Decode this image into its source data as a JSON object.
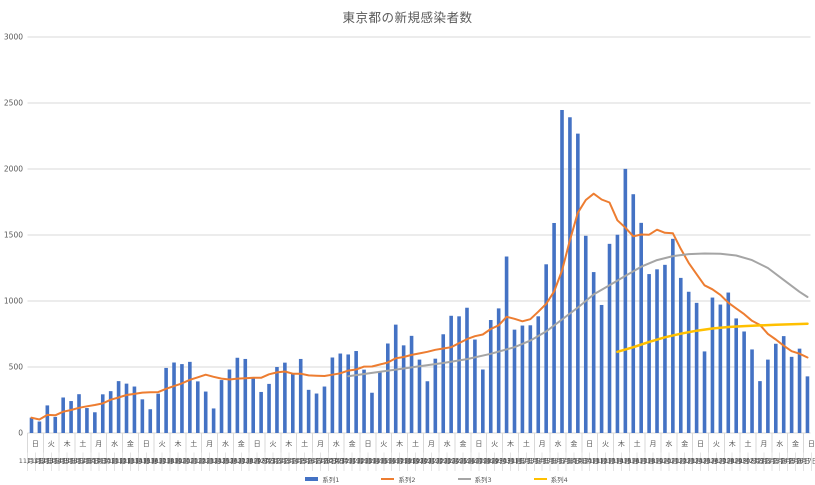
{
  "title": "東京都の新規感染者数",
  "chart_data": {
    "type": "bar",
    "title": "東京都の新規感染者数",
    "xlabel": "",
    "ylabel": "",
    "ylim": [
      0,
      3000
    ],
    "y_ticks": [
      "0",
      "500",
      "1000",
      "1500",
      "2000",
      "2500",
      "3000"
    ],
    "grid": true,
    "legend_position": "bottom",
    "x_dates": [
      "11月1日",
      "11月2日",
      "11月3日",
      "11月4日",
      "11月5日",
      "11月6日",
      "11月7日",
      "11月8日",
      "11月9日",
      "11月10日",
      "11月11日",
      "11月12日",
      "11月13日",
      "11月14日",
      "11月15日",
      "11月16日",
      "11月17日",
      "11月18日",
      "11月19日",
      "11月20日",
      "11月21日",
      "11月22日",
      "11月23日",
      "11月24日",
      "11月25日",
      "11月26日",
      "11月27日",
      "11月28日",
      "11月29日",
      "11月30日",
      "12月1日",
      "12月2日",
      "12月3日",
      "12月4日",
      "12月5日",
      "12月6日",
      "12月7日",
      "12月8日",
      "12月9日",
      "12月10日",
      "12月11日",
      "12月12日",
      "12月13日",
      "12月14日",
      "12月15日",
      "12月16日",
      "12月17日",
      "12月18日",
      "12月19日",
      "12月20日",
      "12月21日",
      "12月22日",
      "12月23日",
      "12月24日",
      "12月25日",
      "12月26日",
      "12月27日",
      "12月28日",
      "12月29日",
      "12月30日",
      "12月31日",
      "1月1日",
      "1月2日",
      "1月3日",
      "1月4日",
      "1月5日",
      "1月6日",
      "1月7日",
      "1月8日",
      "1月9日",
      "1月10日",
      "1月11日",
      "1月12日",
      "1月13日",
      "1月14日",
      "1月15日",
      "1月16日",
      "1月17日",
      "1月18日",
      "1月19日",
      "1月20日",
      "1月21日",
      "1月22日",
      "1月23日",
      "1月24日",
      "1月25日",
      "1月26日",
      "1月27日",
      "1月28日",
      "1月29日",
      "1月30日",
      "1月31日",
      "2月1日",
      "2月2日",
      "2月3日",
      "2月4日",
      "2月5日",
      "2月6日",
      "2月7日"
    ],
    "day_of_week_labels": [
      "日",
      "火",
      "木",
      "土",
      "月",
      "水",
      "金",
      "日",
      "火",
      "木",
      "土",
      "月",
      "水",
      "金",
      "日",
      "火",
      "木",
      "土",
      "月",
      "水",
      "金",
      "日",
      "火",
      "木",
      "土",
      "月",
      "水",
      "金",
      "日",
      "火",
      "木",
      "土",
      "月",
      "水",
      "金",
      "日",
      "火",
      "木",
      "土",
      "月",
      "水",
      "金",
      "日",
      "火",
      "木",
      "土",
      "月",
      "水",
      "金",
      "日"
    ],
    "series": [
      {
        "name": "系列1",
        "type": "bar",
        "color": "#4472C4",
        "values": [
          116,
          87,
          209,
          122,
          269,
          242,
          294,
          189,
          157,
          293,
          317,
          393,
          374,
          352,
          255,
          180,
          298,
          493,
          534,
          522,
          539,
          391,
          314,
          186,
          401,
          481,
          570,
          561,
          418,
          311,
          372,
          500,
          533,
          449,
          561,
          327,
          299,
          352,
          572,
          602,
          595,
          621,
          480,
          305,
          460,
          678,
          821,
          664,
          736,
          556,
          392,
          563,
          748,
          888,
          884,
          949,
          708,
          481,
          856,
          944,
          1337,
          783,
          814,
          816,
          884,
          1278,
          1591,
          2447,
          2392,
          2268,
          1494,
          1219,
          970,
          1433,
          1502,
          2001,
          1809,
          1592,
          1204,
          1240,
          1274,
          1471,
          1175,
          1070,
          986,
          618,
          1026,
          973,
          1064,
          868,
          769,
          633,
          393,
          556,
          676,
          734,
          577,
          639,
          429
        ]
      },
      {
        "name": "系列2",
        "type": "line",
        "color": "#ED7D31",
        "values": [
          116,
          102,
          137,
          134,
          161,
          174,
          191,
          202,
          212,
          224,
          252,
          269,
          288,
          296,
          306,
          309,
          310,
          335,
          355,
          376,
          403,
          422,
          442,
          426,
          412,
          405,
          412,
          415,
          419,
          418,
          445,
          459,
          466,
          449,
          449,
          436,
          434,
          432,
          442,
          452,
          473,
          481,
          503,
          504,
          519,
          534,
          566,
          576,
          592,
          603,
          615,
          630,
          640,
          650,
          681,
          711,
          733,
          746,
          788,
          816,
          880,
          865,
          846,
          862,
          919,
          979,
          1072,
          1230,
          1460,
          1668,
          1765,
          1813,
          1769,
          1746,
          1611,
          1555,
          1490,
          1504,
          1502,
          1540,
          1517,
          1513,
          1395,
          1289,
          1203,
          1119,
          1089,
          1046,
          987,
          944,
          901,
          850,
          818,
          751,
          708,
          661,
          620,
          601,
          572
        ]
      },
      {
        "name": "系列3",
        "type": "line",
        "color": "#A5A5A5",
        "points": [
          [
            40,
            430
          ],
          [
            43,
            455
          ],
          [
            46,
            480
          ],
          [
            49,
            505
          ],
          [
            52,
            530
          ],
          [
            55,
            560
          ],
          [
            58,
            600
          ],
          [
            61,
            650
          ],
          [
            63,
            700
          ],
          [
            65,
            770
          ],
          [
            67,
            860
          ],
          [
            69,
            950
          ],
          [
            71,
            1050
          ],
          [
            73,
            1120
          ],
          [
            75,
            1190
          ],
          [
            77,
            1260
          ],
          [
            79,
            1310
          ],
          [
            81,
            1340
          ],
          [
            83,
            1355
          ],
          [
            85,
            1360
          ],
          [
            87,
            1358
          ],
          [
            89,
            1345
          ],
          [
            91,
            1310
          ],
          [
            93,
            1250
          ],
          [
            95,
            1160
          ],
          [
            97,
            1070
          ],
          [
            98,
            1030
          ]
        ]
      },
      {
        "name": "系列4",
        "type": "line",
        "color": "#FFC000",
        "points": [
          [
            74,
            615
          ],
          [
            76,
            650
          ],
          [
            78,
            690
          ],
          [
            80,
            725
          ],
          [
            82,
            752
          ],
          [
            84,
            775
          ],
          [
            86,
            792
          ],
          [
            88,
            803
          ],
          [
            90,
            810
          ],
          [
            92,
            815
          ],
          [
            94,
            820
          ],
          [
            96,
            824
          ],
          [
            98,
            828
          ]
        ]
      }
    ]
  }
}
